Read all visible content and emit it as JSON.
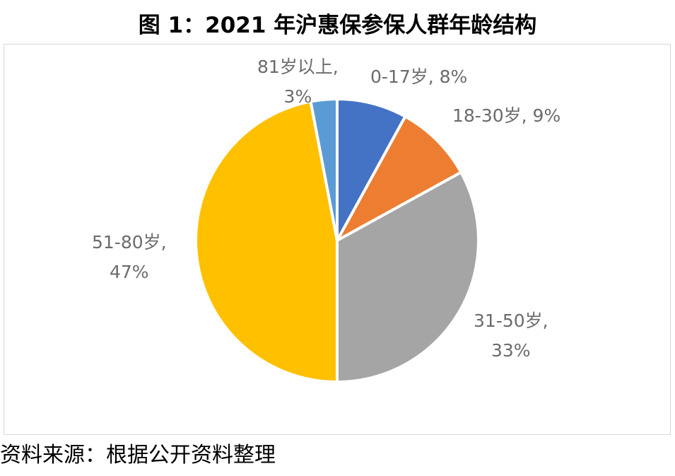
{
  "title": "图 1：2021 年沪惠保参保人群年龄结构",
  "source": "资料来源：根据公开资料整理",
  "chart_data": {
    "type": "pie",
    "title": "图 1：2021 年沪惠保参保人群年龄结构",
    "start_angle_deg": 0,
    "direction": "clockwise",
    "slices": [
      {
        "category": "0-17岁",
        "value": 8,
        "percent_label": "8%",
        "label_line1": "0-17岁, 8%",
        "label_line2": "",
        "color": "#4472c4"
      },
      {
        "category": "18-30岁",
        "value": 9,
        "percent_label": "9%",
        "label_line1": "18-30岁, 9%",
        "label_line2": "",
        "color": "#ed7d31"
      },
      {
        "category": "31-50岁",
        "value": 33,
        "percent_label": "33%",
        "label_line1": "31-50岁,",
        "label_line2": "33%",
        "color": "#a5a5a5"
      },
      {
        "category": "51-80岁",
        "value": 47,
        "percent_label": "47%",
        "label_line1": "51-80岁,",
        "label_line2": "47%",
        "color": "#ffc000"
      },
      {
        "category": "81岁以上",
        "value": 3,
        "percent_label": "3%",
        "label_line1": "81岁以上,",
        "label_line2": "3%",
        "color": "#5b9bd5"
      }
    ]
  }
}
